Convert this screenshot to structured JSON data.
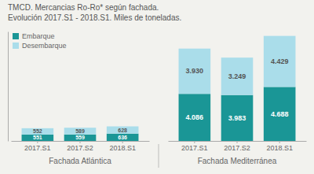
{
  "chart_data": {
    "type": "bar",
    "title": "TMCD. Mercancias Ro-Ro* según fachada.",
    "subtitle": "Evolución 2017.S1 - 2018.S1. Miles de toneladas.",
    "categories": [
      "2017.S1",
      "2017.S2",
      "2018.S1",
      "2017.S1",
      "2017.S2",
      "2018.S1"
    ],
    "groups": [
      "Fachada Atlántica",
      "Fachada Atlántica",
      "Fachada Atlántica",
      "Fachada Mediterránea",
      "Fachada Mediterránea",
      "Fachada Mediterránea"
    ],
    "series": [
      {
        "name": "Embarque",
        "color": "#1a9696",
        "values": [
          551,
          559,
          636,
          4086,
          3983,
          4688
        ],
        "value_labels": [
          "551",
          "559",
          "636",
          "4.086",
          "3.983",
          "4.688"
        ]
      },
      {
        "name": "Desembarque",
        "color": "#aaddea",
        "values": [
          552,
          589,
          628,
          3930,
          3249,
          4429
        ],
        "value_labels": [
          "552",
          "589",
          "628",
          "3.930",
          "3.249",
          "4.429"
        ]
      }
    ],
    "stacked": true,
    "data_labels": true,
    "legend": "upper left",
    "tick_labels": "x",
    "ylim": [
      0,
      9500
    ]
  }
}
